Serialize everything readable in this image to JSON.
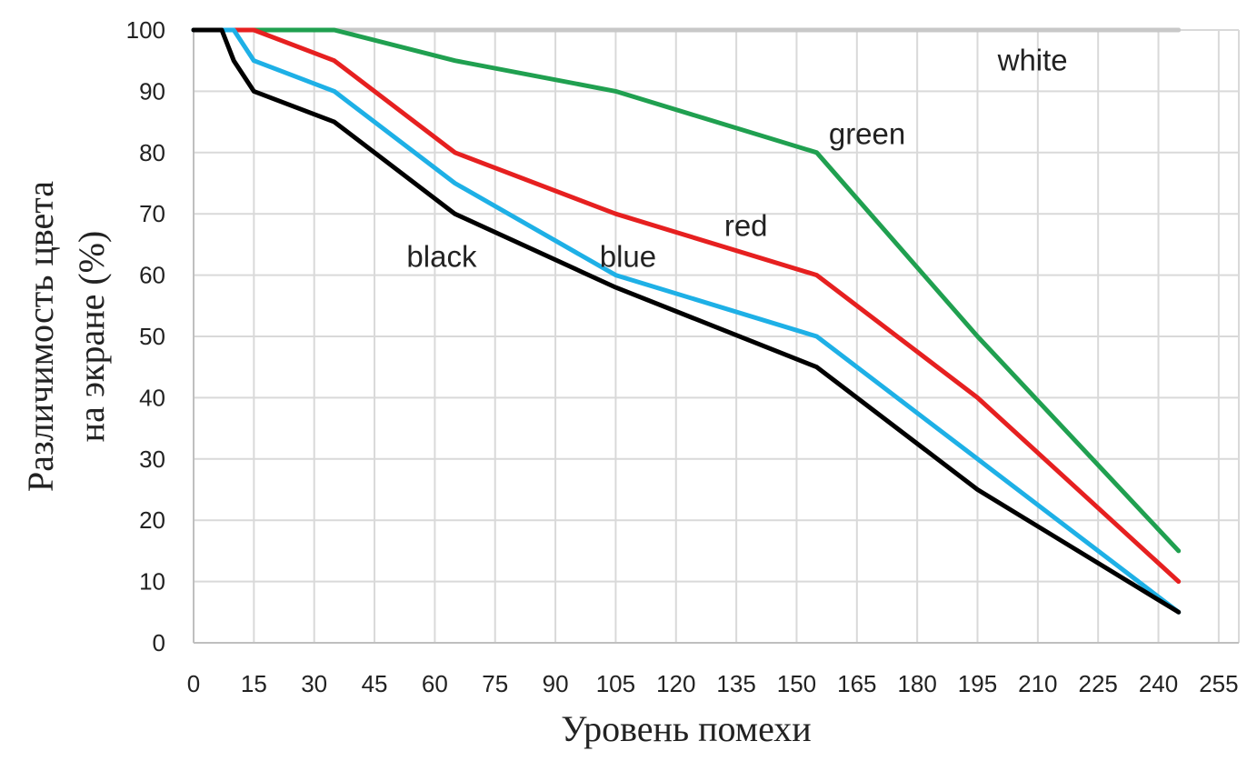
{
  "chart_data": {
    "type": "line",
    "xlabel": "Уровень помехи",
    "ylabel": [
      "Различимость цвета",
      "на экране (%)"
    ],
    "xlim": [
      0,
      260
    ],
    "ylim": [
      0,
      100
    ],
    "x_ticks": [
      0,
      15,
      30,
      45,
      60,
      75,
      90,
      105,
      120,
      135,
      150,
      165,
      180,
      195,
      210,
      225,
      240,
      255
    ],
    "y_ticks": [
      0,
      10,
      20,
      30,
      40,
      50,
      60,
      70,
      80,
      90,
      100
    ],
    "grid": true,
    "legend": "none",
    "series": [
      {
        "name": "white",
        "color": "#c8c8c8",
        "x": [
          0,
          245
        ],
        "y": [
          100,
          100
        ]
      },
      {
        "name": "green",
        "color": "#20a050",
        "x": [
          0,
          35,
          65,
          105,
          155,
          195,
          245
        ],
        "y": [
          100,
          100,
          95,
          90,
          80,
          50,
          15
        ]
      },
      {
        "name": "red",
        "color": "#e62020",
        "x": [
          0,
          15,
          35,
          65,
          105,
          155,
          195,
          245
        ],
        "y": [
          100,
          100,
          95,
          80,
          70,
          60,
          40,
          10
        ]
      },
      {
        "name": "blue",
        "color": "#1eb0e6",
        "x": [
          0,
          10,
          15,
          35,
          65,
          105,
          155,
          195,
          245
        ],
        "y": [
          100,
          100,
          95,
          90,
          75,
          60,
          50,
          30,
          5
        ]
      },
      {
        "name": "black",
        "color": "#000000",
        "x": [
          0,
          7,
          10,
          15,
          35,
          65,
          105,
          155,
          195,
          245
        ],
        "y": [
          100,
          100,
          95,
          90,
          85,
          70,
          58,
          45,
          25,
          5
        ]
      }
    ],
    "annotations": [
      {
        "text": "white",
        "x": 200,
        "y": 95
      },
      {
        "text": "green",
        "x": 158,
        "y": 83
      },
      {
        "text": "red",
        "x": 132,
        "y": 68
      },
      {
        "text": "blue",
        "x": 101,
        "y": 63
      },
      {
        "text": "black",
        "x": 53,
        "y": 63
      }
    ]
  }
}
